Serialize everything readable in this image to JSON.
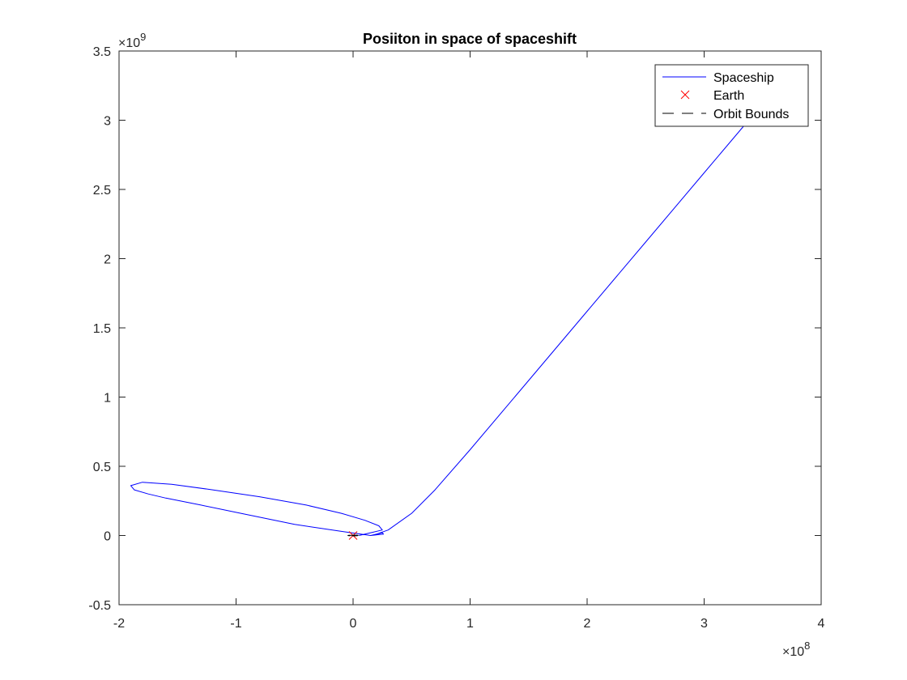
{
  "chart_data": {
    "type": "line",
    "title": "Posiiton in space of spaceshift",
    "xlabel": "",
    "ylabel": "",
    "xlim": [
      -2,
      4
    ],
    "ylim": [
      -0.5,
      3.5
    ],
    "x_multiplier": {
      "base": "10",
      "power": "8"
    },
    "y_multiplier": {
      "base": "10",
      "power": "9"
    },
    "x_ticks": [
      -2,
      -1,
      0,
      1,
      2,
      3,
      4
    ],
    "x_tick_labels": [
      "-2",
      "-1",
      "0",
      "1",
      "2",
      "3",
      "4"
    ],
    "y_ticks": [
      -0.5,
      0,
      0.5,
      1,
      1.5,
      2,
      2.5,
      3,
      3.5
    ],
    "y_tick_labels": [
      "-0.5",
      "0",
      "0.5",
      "1",
      "1.5",
      "2",
      "2.5",
      "3",
      "3.5"
    ],
    "grid": false,
    "legend_position": "top-right",
    "series": [
      {
        "name": "Spaceship",
        "style": "line",
        "color": "#0000FF",
        "x": [
          0.05,
          0.15,
          0.25,
          0.22,
          0.1,
          -0.1,
          -0.4,
          -0.8,
          -1.2,
          -1.55,
          -1.8,
          -1.9,
          -1.87,
          -1.75,
          -1.6,
          -1.3,
          -0.9,
          -0.5,
          -0.1,
          0.15,
          0.26,
          0.25,
          0.15,
          0.2,
          0.3,
          0.5,
          0.7,
          1.0,
          1.5,
          2.0,
          2.5,
          3.0,
          3.5,
          3.7
        ],
        "y": [
          0.0,
          0.02,
          0.04,
          0.07,
          0.11,
          0.16,
          0.22,
          0.28,
          0.33,
          0.37,
          0.385,
          0.36,
          0.33,
          0.3,
          0.27,
          0.22,
          0.15,
          0.08,
          0.03,
          0.0,
          0.01,
          0.02,
          0.0,
          0.01,
          0.04,
          0.16,
          0.33,
          0.62,
          1.12,
          1.62,
          2.12,
          2.62,
          3.12,
          3.32
        ]
      },
      {
        "name": "Earth",
        "style": "marker",
        "marker": "x",
        "color": "#FF0000",
        "x": [
          0.0
        ],
        "y": [
          0.0
        ]
      },
      {
        "name": "Orbit Bounds",
        "style": "dashed",
        "color": "#000000",
        "circles": [
          {
            "cx": 0.0,
            "cy": 0.0,
            "r": 0.13
          },
          {
            "cx": 0.0,
            "cy": 0.0,
            "r": 0.18
          }
        ]
      }
    ]
  }
}
